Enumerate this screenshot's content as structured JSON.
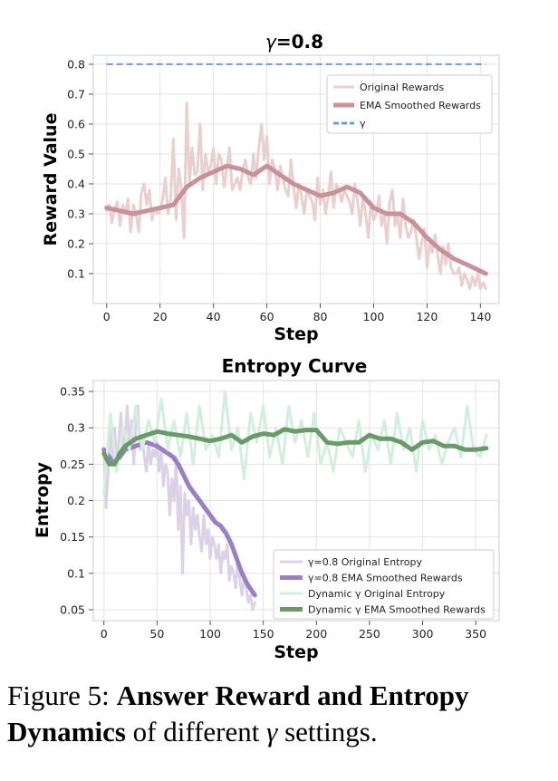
{
  "chart_data": [
    {
      "type": "line",
      "title_prefix": "γ",
      "title_suffix": "=0.8",
      "xlabel": "Step",
      "ylabel": "Reward Value",
      "xlim": [
        -5,
        147
      ],
      "ylim": [
        0.0,
        0.83
      ],
      "xticks": [
        0,
        20,
        40,
        60,
        80,
        100,
        120,
        140
      ],
      "yticks": [
        0.1,
        0.2,
        0.3,
        0.4,
        0.5,
        0.6,
        0.7,
        0.8
      ],
      "grid": true,
      "legend_position": "top-right",
      "series": [
        {
          "name": "Original Rewards",
          "color": "#e9cfcf",
          "x": [
            0,
            1,
            2,
            3,
            4,
            5,
            6,
            7,
            8,
            9,
            10,
            11,
            12,
            13,
            14,
            15,
            16,
            17,
            18,
            19,
            20,
            21,
            22,
            23,
            24,
            25,
            26,
            27,
            28,
            29,
            30,
            31,
            32,
            33,
            34,
            35,
            36,
            37,
            38,
            39,
            40,
            41,
            42,
            43,
            44,
            45,
            46,
            47,
            48,
            49,
            50,
            51,
            52,
            53,
            54,
            55,
            56,
            57,
            58,
            59,
            60,
            61,
            62,
            63,
            64,
            65,
            66,
            67,
            68,
            69,
            70,
            71,
            72,
            73,
            74,
            75,
            76,
            77,
            78,
            79,
            80,
            81,
            82,
            83,
            84,
            85,
            86,
            87,
            88,
            89,
            90,
            91,
            92,
            93,
            94,
            95,
            96,
            97,
            98,
            99,
            100,
            101,
            102,
            103,
            104,
            105,
            106,
            107,
            108,
            109,
            110,
            111,
            112,
            113,
            114,
            115,
            116,
            117,
            118,
            119,
            120,
            121,
            122,
            123,
            124,
            125,
            126,
            127,
            128,
            129,
            130,
            131,
            132,
            133,
            134,
            135,
            136,
            137,
            138,
            139,
            140,
            141,
            142
          ],
          "values": [
            0.31,
            0.33,
            0.27,
            0.32,
            0.34,
            0.26,
            0.33,
            0.3,
            0.35,
            0.24,
            0.33,
            0.3,
            0.24,
            0.37,
            0.4,
            0.33,
            0.38,
            0.28,
            0.32,
            0.3,
            0.31,
            0.35,
            0.42,
            0.3,
            0.35,
            0.55,
            0.28,
            0.45,
            0.38,
            0.22,
            0.67,
            0.4,
            0.52,
            0.43,
            0.44,
            0.6,
            0.38,
            0.5,
            0.44,
            0.46,
            0.52,
            0.4,
            0.5,
            0.48,
            0.39,
            0.45,
            0.52,
            0.38,
            0.4,
            0.42,
            0.38,
            0.45,
            0.48,
            0.42,
            0.4,
            0.5,
            0.42,
            0.52,
            0.6,
            0.48,
            0.56,
            0.4,
            0.48,
            0.45,
            0.38,
            0.46,
            0.42,
            0.38,
            0.36,
            0.48,
            0.39,
            0.32,
            0.4,
            0.36,
            0.3,
            0.38,
            0.36,
            0.34,
            0.28,
            0.42,
            0.33,
            0.38,
            0.3,
            0.36,
            0.44,
            0.32,
            0.4,
            0.38,
            0.34,
            0.38,
            0.36,
            0.34,
            0.3,
            0.4,
            0.34,
            0.26,
            0.36,
            0.3,
            0.22,
            0.34,
            0.28,
            0.3,
            0.36,
            0.26,
            0.3,
            0.2,
            0.34,
            0.38,
            0.26,
            0.3,
            0.22,
            0.35,
            0.26,
            0.22,
            0.24,
            0.28,
            0.22,
            0.15,
            0.2,
            0.25,
            0.12,
            0.2,
            0.17,
            0.23,
            0.16,
            0.1,
            0.19,
            0.13,
            0.2,
            0.12,
            0.1,
            0.1,
            0.12,
            0.06,
            0.1,
            0.08,
            0.05,
            0.09,
            0.06,
            0.1,
            0.05,
            0.07,
            0.05
          ]
        },
        {
          "name": "EMA Smoothed Rewards",
          "color": "#c9919a",
          "x": [
            0,
            5,
            10,
            15,
            20,
            25,
            30,
            35,
            40,
            45,
            50,
            55,
            60,
            65,
            70,
            75,
            80,
            85,
            90,
            95,
            100,
            105,
            110,
            115,
            120,
            125,
            130,
            135,
            142
          ],
          "values": [
            0.32,
            0.31,
            0.3,
            0.31,
            0.32,
            0.33,
            0.39,
            0.42,
            0.44,
            0.46,
            0.45,
            0.43,
            0.46,
            0.43,
            0.4,
            0.38,
            0.36,
            0.37,
            0.39,
            0.37,
            0.32,
            0.3,
            0.3,
            0.27,
            0.22,
            0.18,
            0.15,
            0.13,
            0.1
          ]
        },
        {
          "name": "γ",
          "color": "#6c98e8",
          "style": "dashed",
          "x": [
            0,
            142
          ],
          "values": [
            0.8,
            0.8
          ]
        }
      ]
    },
    {
      "type": "line",
      "title": "Entropy Curve",
      "xlabel": "Step",
      "ylabel": "Entropy",
      "xlim": [
        -10,
        372
      ],
      "ylim": [
        0.035,
        0.365
      ],
      "xticks": [
        0,
        50,
        100,
        150,
        200,
        250,
        300,
        350
      ],
      "yticks": [
        0.05,
        0.1,
        0.15,
        0.2,
        0.25,
        0.3,
        0.35
      ],
      "grid": true,
      "legend_position": "bottom-right",
      "series": [
        {
          "name": "γ=0.8 Original Entropy",
          "color": "#dcd2e8",
          "x": [
            0,
            2,
            4,
            6,
            8,
            10,
            12,
            14,
            16,
            18,
            20,
            22,
            24,
            26,
            28,
            30,
            32,
            34,
            36,
            38,
            40,
            42,
            44,
            46,
            48,
            50,
            52,
            54,
            56,
            58,
            60,
            62,
            64,
            66,
            68,
            70,
            72,
            74,
            76,
            78,
            80,
            82,
            84,
            86,
            88,
            90,
            92,
            94,
            96,
            98,
            100,
            102,
            104,
            106,
            108,
            110,
            112,
            114,
            116,
            118,
            120,
            122,
            124,
            126,
            128,
            130,
            132,
            134,
            136,
            138,
            140,
            142
          ],
          "values": [
            0.27,
            0.19,
            0.24,
            0.31,
            0.26,
            0.3,
            0.25,
            0.28,
            0.32,
            0.27,
            0.29,
            0.33,
            0.27,
            0.31,
            0.25,
            0.3,
            0.33,
            0.27,
            0.29,
            0.26,
            0.24,
            0.28,
            0.25,
            0.27,
            0.26,
            0.28,
            0.24,
            0.27,
            0.22,
            0.25,
            0.24,
            0.18,
            0.23,
            0.2,
            0.26,
            0.16,
            0.22,
            0.1,
            0.21,
            0.18,
            0.2,
            0.14,
            0.19,
            0.16,
            0.18,
            0.15,
            0.13,
            0.18,
            0.14,
            0.16,
            0.12,
            0.15,
            0.14,
            0.12,
            0.14,
            0.1,
            0.13,
            0.12,
            0.14,
            0.09,
            0.11,
            0.1,
            0.08,
            0.12,
            0.09,
            0.07,
            0.1,
            0.08,
            0.06,
            0.07,
            0.05,
            0.06
          ]
        },
        {
          "name": "γ=0.8 EMA Smoothed Rewards",
          "color": "#9a80c3",
          "x": [
            0,
            5,
            10,
            15,
            20,
            30,
            40,
            50,
            55,
            60,
            65,
            70,
            75,
            80,
            85,
            90,
            95,
            100,
            105,
            110,
            115,
            120,
            125,
            130,
            135,
            142
          ],
          "values": [
            0.27,
            0.26,
            0.25,
            0.26,
            0.27,
            0.275,
            0.28,
            0.275,
            0.27,
            0.265,
            0.26,
            0.25,
            0.235,
            0.22,
            0.21,
            0.2,
            0.19,
            0.18,
            0.17,
            0.165,
            0.155,
            0.14,
            0.12,
            0.1,
            0.085,
            0.07
          ]
        },
        {
          "name": "Dynamic γ Original Entropy",
          "color": "#d2eedd",
          "x": [
            0,
            6,
            12,
            18,
            24,
            30,
            36,
            42,
            48,
            54,
            60,
            66,
            72,
            78,
            84,
            90,
            96,
            102,
            108,
            114,
            120,
            126,
            132,
            138,
            144,
            150,
            156,
            162,
            168,
            174,
            180,
            186,
            192,
            198,
            204,
            210,
            216,
            222,
            228,
            234,
            240,
            246,
            252,
            258,
            264,
            270,
            276,
            282,
            288,
            294,
            300,
            306,
            312,
            318,
            324,
            330,
            336,
            342,
            348,
            354,
            360
          ],
          "values": [
            0.21,
            0.32,
            0.24,
            0.3,
            0.27,
            0.33,
            0.27,
            0.31,
            0.28,
            0.34,
            0.27,
            0.31,
            0.26,
            0.32,
            0.25,
            0.33,
            0.27,
            0.29,
            0.26,
            0.35,
            0.27,
            0.3,
            0.23,
            0.32,
            0.28,
            0.33,
            0.26,
            0.3,
            0.25,
            0.33,
            0.28,
            0.31,
            0.26,
            0.32,
            0.25,
            0.28,
            0.24,
            0.3,
            0.28,
            0.26,
            0.31,
            0.24,
            0.29,
            0.27,
            0.31,
            0.25,
            0.32,
            0.27,
            0.3,
            0.24,
            0.31,
            0.27,
            0.29,
            0.25,
            0.28,
            0.3,
            0.26,
            0.33,
            0.27,
            0.26,
            0.29
          ]
        },
        {
          "name": "Dynamic γ EMA Smoothed Rewards",
          "color": "#6a9a6a",
          "x": [
            0,
            5,
            10,
            15,
            20,
            25,
            30,
            40,
            50,
            60,
            70,
            80,
            90,
            100,
            110,
            120,
            130,
            140,
            150,
            160,
            170,
            180,
            190,
            200,
            210,
            220,
            230,
            240,
            250,
            260,
            270,
            280,
            290,
            300,
            310,
            320,
            330,
            340,
            350,
            360
          ],
          "values": [
            0.265,
            0.25,
            0.25,
            0.265,
            0.275,
            0.28,
            0.285,
            0.29,
            0.295,
            0.292,
            0.29,
            0.288,
            0.285,
            0.282,
            0.285,
            0.29,
            0.28,
            0.288,
            0.292,
            0.29,
            0.298,
            0.295,
            0.297,
            0.297,
            0.28,
            0.278,
            0.28,
            0.28,
            0.29,
            0.285,
            0.285,
            0.28,
            0.27,
            0.28,
            0.282,
            0.275,
            0.275,
            0.27,
            0.27,
            0.272
          ]
        }
      ]
    }
  ],
  "caption": {
    "label": "Figure 5:",
    "bold_text": "Answer Reward and Entropy Dynamics",
    "rest_text": "of different",
    "symbol": "γ",
    "tail": "settings."
  }
}
